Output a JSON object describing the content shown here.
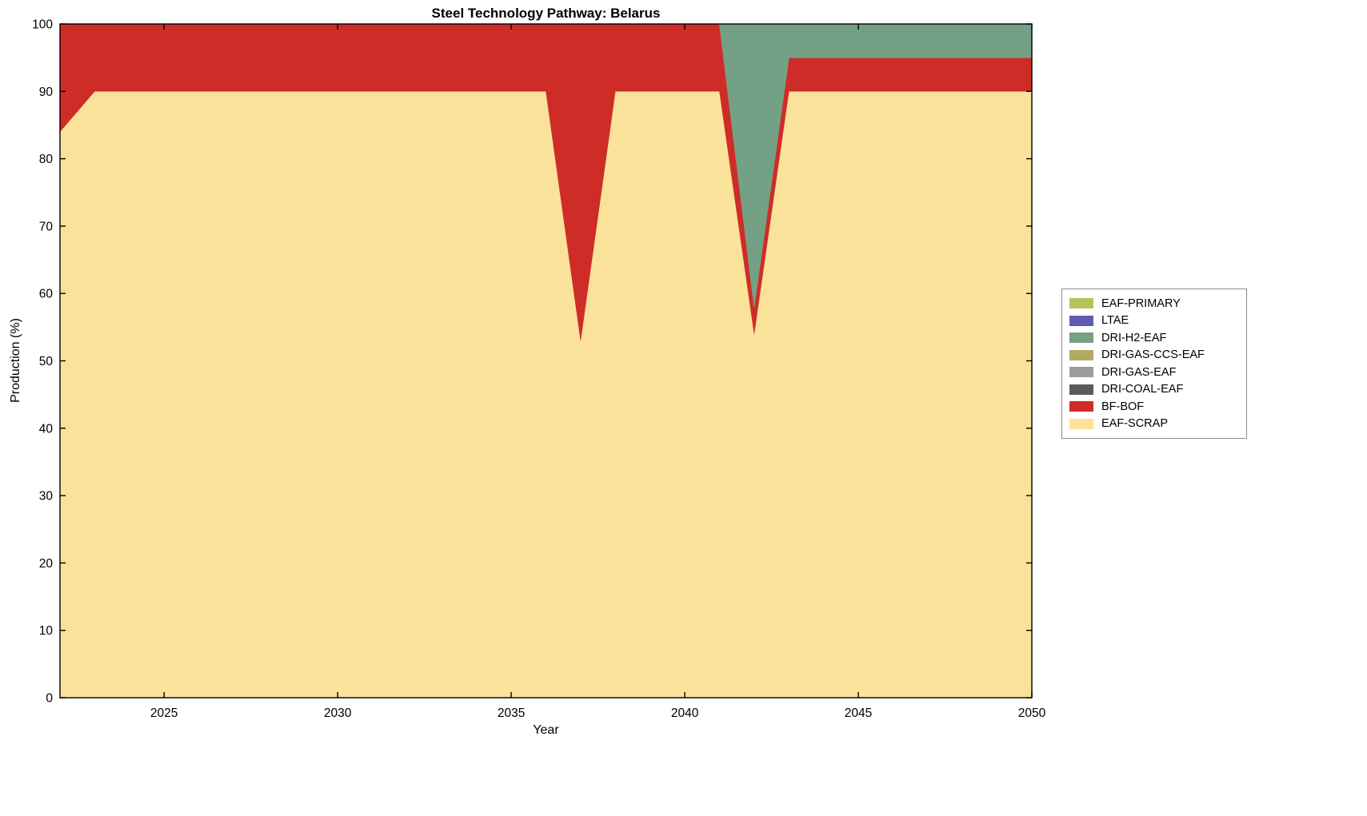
{
  "chart_data": {
    "type": "area",
    "stacked": true,
    "title": "Steel Technology Pathway: Belarus",
    "xlabel": "Year",
    "ylabel": "Production (%)",
    "xlim": [
      2022,
      2050
    ],
    "ylim": [
      0,
      100
    ],
    "xticks": [
      2025,
      2030,
      2035,
      2040,
      2045,
      2050
    ],
    "yticks": [
      0,
      10,
      20,
      30,
      40,
      50,
      60,
      70,
      80,
      90,
      100
    ],
    "grid": false,
    "legend_position": "right-outside",
    "axis_color": "#000000",
    "x": [
      2022,
      2023,
      2024,
      2025,
      2026,
      2027,
      2028,
      2029,
      2030,
      2031,
      2032,
      2033,
      2034,
      2035,
      2036,
      2037,
      2038,
      2039,
      2040,
      2041,
      2042,
      2043,
      2044,
      2045,
      2046,
      2047,
      2048,
      2049,
      2050
    ],
    "series": [
      {
        "name": "EAF-SCRAP",
        "color": "#FAE29A",
        "values": [
          84,
          90,
          90,
          90,
          90,
          90,
          90,
          90,
          90,
          90,
          90,
          90,
          90,
          90,
          90,
          53,
          90,
          90,
          90,
          90,
          54,
          90,
          90,
          90,
          90,
          90,
          90,
          90,
          90
        ]
      },
      {
        "name": "BF-BOF",
        "color": "#CE2D27",
        "values": [
          16,
          10,
          10,
          10,
          10,
          10,
          10,
          10,
          10,
          10,
          10,
          10,
          10,
          10,
          10,
          47,
          10,
          10,
          10,
          10,
          4,
          5,
          5,
          5,
          5,
          5,
          5,
          5,
          5
        ]
      },
      {
        "name": "DRI-COAL-EAF",
        "color": "#5B5B5B",
        "values": [
          0,
          0,
          0,
          0,
          0,
          0,
          0,
          0,
          0,
          0,
          0,
          0,
          0,
          0,
          0,
          0,
          0,
          0,
          0,
          0,
          0,
          0,
          0,
          0,
          0,
          0,
          0,
          0,
          0
        ]
      },
      {
        "name": "DRI-GAS-EAF",
        "color": "#9C9C9C",
        "values": [
          0,
          0,
          0,
          0,
          0,
          0,
          0,
          0,
          0,
          0,
          0,
          0,
          0,
          0,
          0,
          0,
          0,
          0,
          0,
          0,
          0,
          0,
          0,
          0,
          0,
          0,
          0,
          0,
          0
        ]
      },
      {
        "name": "DRI-GAS-CCS-EAF",
        "color": "#B0AB60",
        "values": [
          0,
          0,
          0,
          0,
          0,
          0,
          0,
          0,
          0,
          0,
          0,
          0,
          0,
          0,
          0,
          0,
          0,
          0,
          0,
          0,
          0,
          0,
          0,
          0,
          0,
          0,
          0,
          0,
          0
        ]
      },
      {
        "name": "DRI-H2-EAF",
        "color": "#74A085",
        "values": [
          0,
          0,
          0,
          0,
          0,
          0,
          0,
          0,
          0,
          0,
          0,
          0,
          0,
          0,
          0,
          0,
          0,
          0,
          0,
          0,
          42,
          5,
          5,
          5,
          5,
          5,
          5,
          5,
          5
        ]
      },
      {
        "name": "LTAE",
        "color": "#5F5BAF",
        "values": [
          0,
          0,
          0,
          0,
          0,
          0,
          0,
          0,
          0,
          0,
          0,
          0,
          0,
          0,
          0,
          0,
          0,
          0,
          0,
          0,
          0,
          0,
          0,
          0,
          0,
          0,
          0,
          0,
          0
        ]
      },
      {
        "name": "EAF-PRIMARY",
        "color": "#B2C45B",
        "values": [
          0,
          0,
          0,
          0,
          0,
          0,
          0,
          0,
          0,
          0,
          0,
          0,
          0,
          0,
          0,
          0,
          0,
          0,
          0,
          0,
          0,
          0,
          0,
          0,
          0,
          0,
          0,
          0,
          0
        ]
      }
    ]
  }
}
